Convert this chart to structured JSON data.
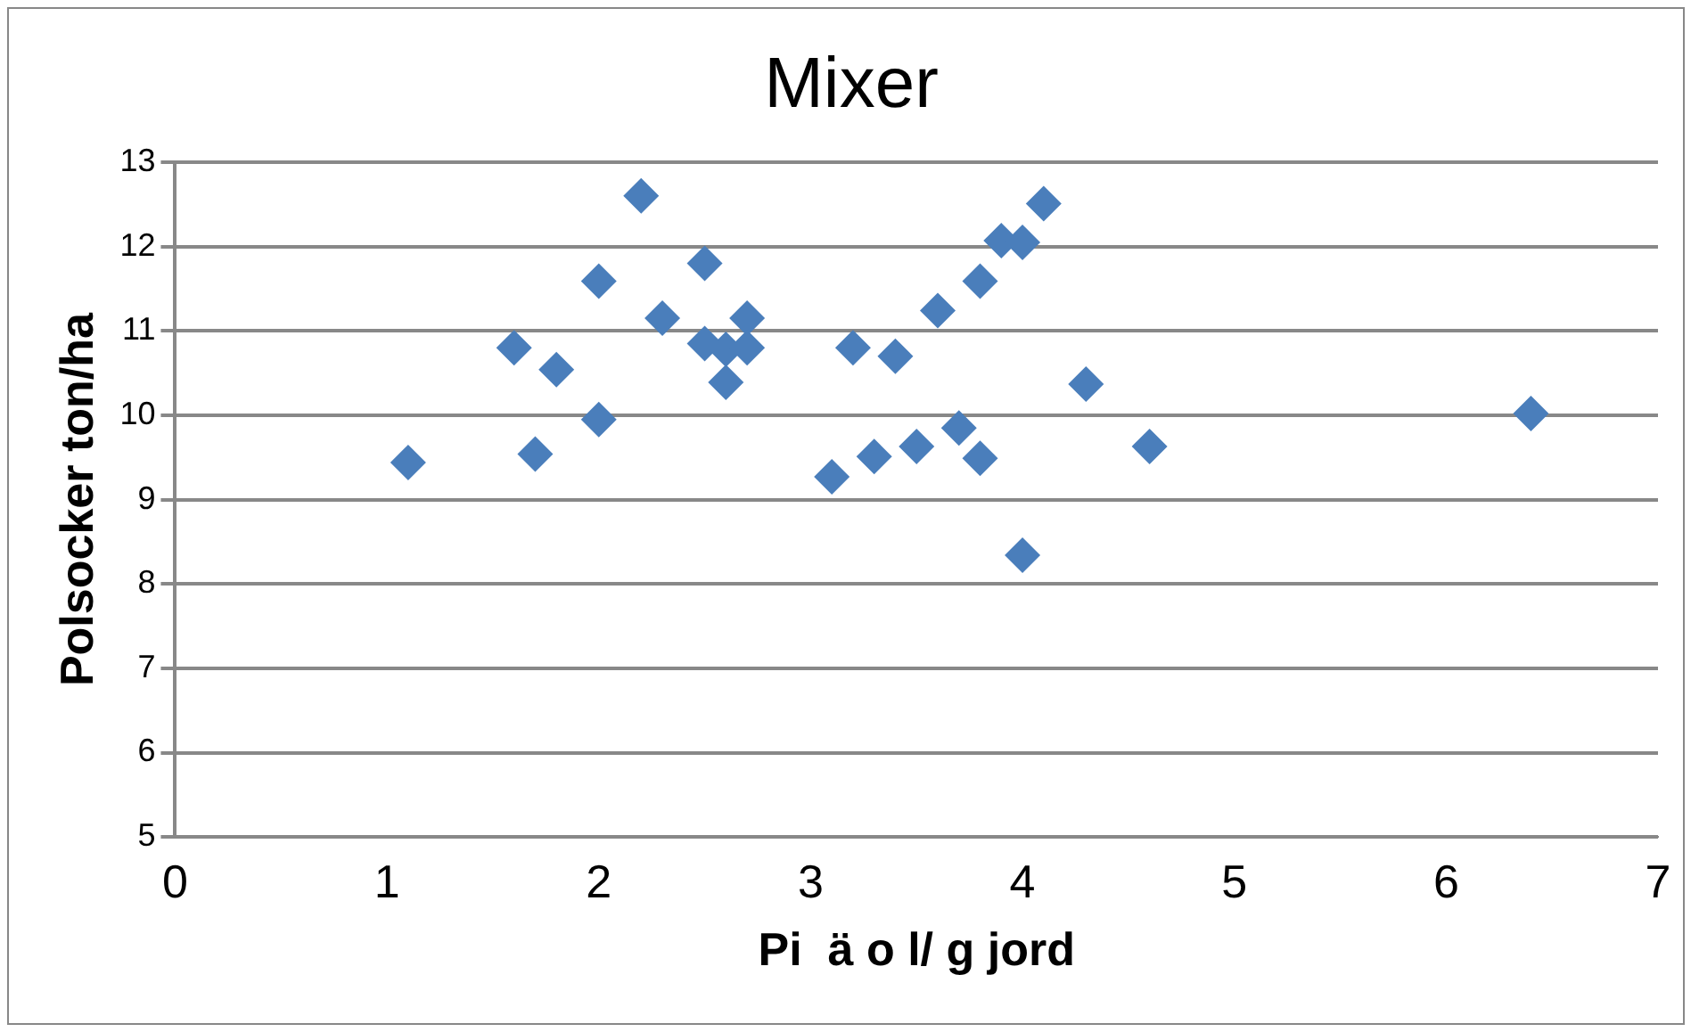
{
  "chart_data": {
    "type": "scatter",
    "title": "Mixer",
    "xlabel": "Pi  ä o l/ g jord",
    "ylabel": "Polsocker ton/ha",
    "x": [
      1.1,
      1.6,
      1.7,
      1.8,
      2.0,
      2.0,
      2.2,
      2.3,
      2.5,
      2.5,
      2.6,
      2.6,
      2.7,
      2.7,
      3.1,
      3.2,
      3.3,
      3.4,
      3.5,
      3.6,
      3.7,
      3.8,
      3.8,
      3.9,
      4.0,
      4.0,
      4.1,
      4.3,
      4.6,
      6.4
    ],
    "series": [
      {
        "color": "#4a7ebb",
        "values": [
          9.44,
          10.8,
          9.54,
          10.54,
          11.59,
          9.95,
          12.6,
          11.15,
          11.8,
          10.85,
          10.78,
          10.39,
          11.15,
          10.8,
          9.27,
          10.8,
          9.51,
          10.7,
          9.63,
          11.24,
          9.85,
          11.59,
          9.49,
          12.07,
          12.05,
          8.34,
          12.51,
          10.37,
          9.63,
          10.02
        ]
      }
    ],
    "xlim": [
      0,
      7
    ],
    "xticks": [
      0,
      1,
      2,
      3,
      4,
      5,
      6,
      7
    ],
    "ylim": [
      5,
      13
    ],
    "yticks": [
      5,
      6,
      7,
      8,
      9,
      10,
      11,
      12,
      13
    ],
    "grid": "y",
    "legend": false,
    "marker": "diamond"
  }
}
